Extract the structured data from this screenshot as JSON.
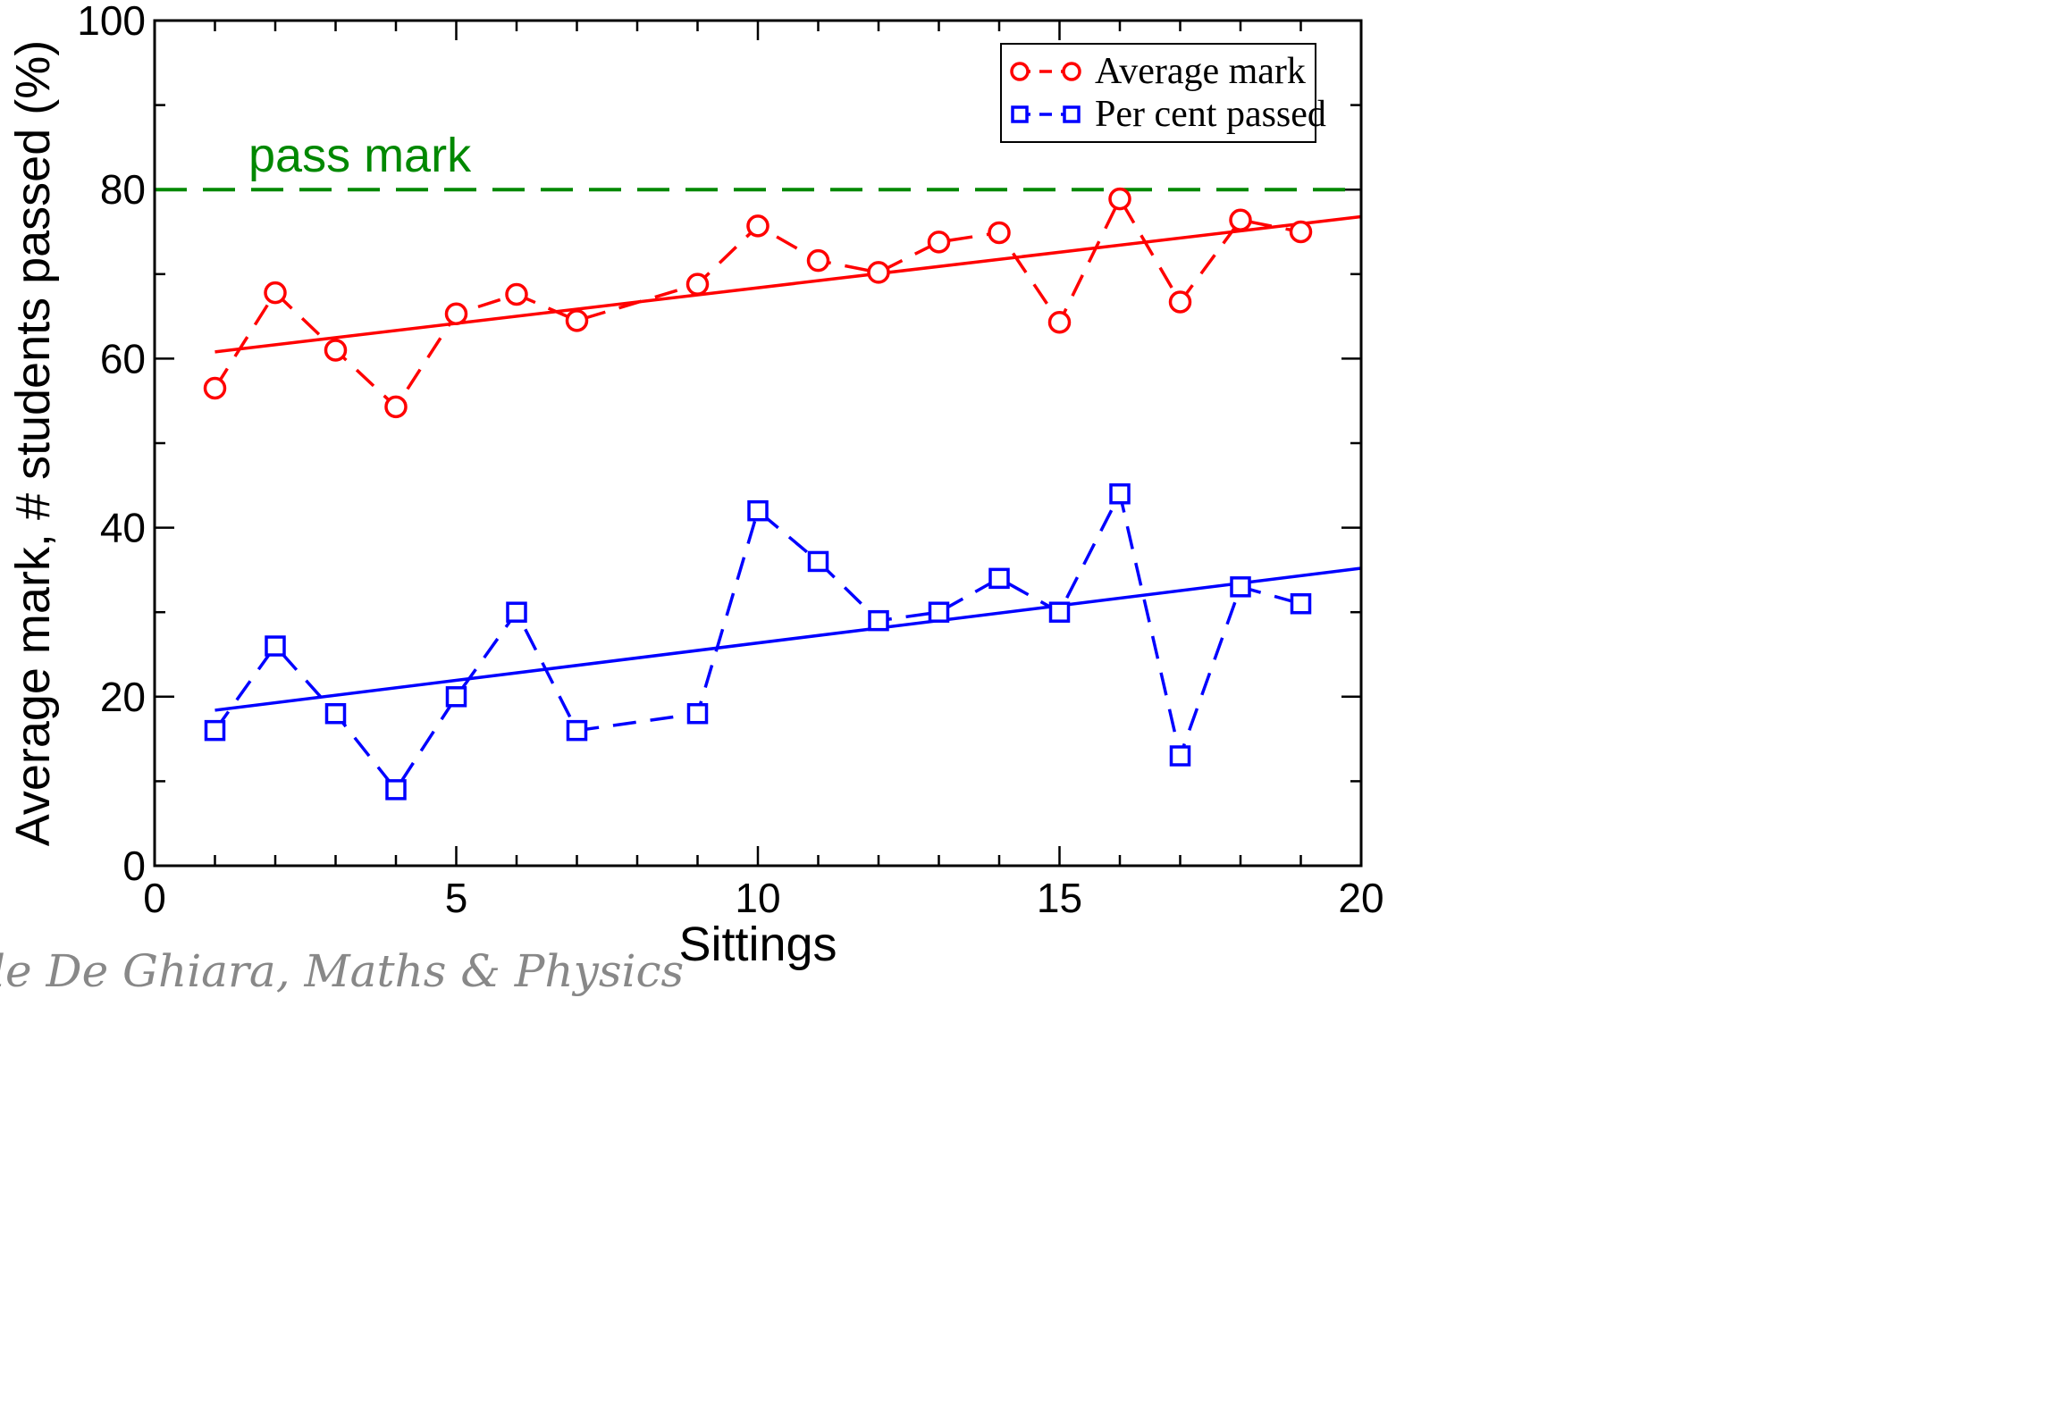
{
  "chart_data": {
    "type": "line",
    "xlabel": "Sittings",
    "ylabel": "Average mark, # students passed (%)",
    "xlim": [
      0,
      20
    ],
    "ylim": [
      0,
      100
    ],
    "xticks": [
      0,
      5,
      10,
      15,
      20
    ],
    "yticks": [
      0,
      20,
      40,
      60,
      80,
      100
    ],
    "grid": false,
    "legend_position": "top-right",
    "series": [
      {
        "name": "Average mark",
        "color": "#ff0000",
        "marker": "circle",
        "x": [
          1,
          2,
          3,
          4,
          5,
          6,
          7,
          9,
          10,
          11,
          12,
          13,
          14,
          15,
          16,
          17,
          18,
          19
        ],
        "y": [
          56.5,
          67.8,
          61.0,
          54.3,
          65.3,
          67.6,
          64.5,
          68.8,
          75.7,
          71.6,
          70.2,
          73.8,
          74.9,
          64.3,
          78.9,
          66.7,
          76.4,
          75.0
        ],
        "trend": {
          "x": [
            1,
            20
          ],
          "y": [
            60.8,
            76.8
          ]
        }
      },
      {
        "name": "Per cent passed",
        "color": "#0000ff",
        "marker": "square",
        "x": [
          1,
          2,
          3,
          4,
          5,
          6,
          7,
          9,
          10,
          11,
          12,
          13,
          14,
          15,
          16,
          17,
          18,
          19
        ],
        "y": [
          16,
          26,
          18,
          9,
          20,
          30,
          16,
          18,
          42,
          36,
          29,
          30,
          34,
          30,
          44,
          13,
          33,
          31
        ],
        "trend": {
          "x": [
            1,
            20
          ],
          "y": [
            18.4,
            35.2
          ]
        }
      }
    ],
    "reference_line": {
      "y": 80,
      "label": "pass mark",
      "color": "#008800"
    },
    "footer_text": "le De Ghiara, Maths & Physics"
  }
}
